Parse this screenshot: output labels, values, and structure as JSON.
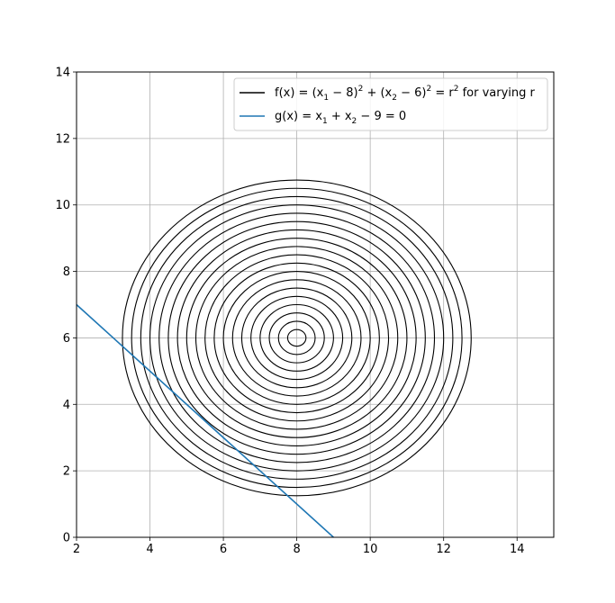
{
  "chart_data": {
    "type": "line",
    "title": "",
    "xlabel": "",
    "ylabel": "",
    "xlim": [
      2,
      15
    ],
    "ylim": [
      0,
      14
    ],
    "xticks": [
      2,
      4,
      6,
      8,
      10,
      12,
      14
    ],
    "yticks": [
      0,
      2,
      4,
      6,
      8,
      10,
      12,
      14
    ],
    "grid": true,
    "legend_position": "top-right",
    "contours": {
      "center": [
        8,
        6
      ],
      "radii": [
        0.25,
        0.5,
        0.75,
        1.0,
        1.25,
        1.5,
        1.75,
        2.0,
        2.25,
        2.5,
        2.75,
        3.0,
        3.25,
        3.5,
        3.75,
        4.0,
        4.25,
        4.5,
        4.75
      ],
      "color": "#000000"
    },
    "line": {
      "x": [
        2,
        9
      ],
      "y": [
        7,
        0
      ],
      "color": "#1f77b4"
    },
    "legend": [
      {
        "key": "f",
        "color": "#000000"
      },
      {
        "key": "g",
        "color": "#1f77b4"
      }
    ],
    "legend_label_f": {
      "lhs": "f(x) = (x",
      "s1": "1",
      "m1": " − 8)",
      "p1": "2",
      "m2": " + (x",
      "s2": "2",
      "m3": " − 6)",
      "p2": "2",
      "m4": " = r",
      "p3": "2",
      "tail": " for varying r"
    },
    "legend_label_g": {
      "lhs": "g(x) = x",
      "s1": "1",
      "m1": " + x",
      "s2": "2",
      "m2": " − 9 = 0"
    }
  }
}
